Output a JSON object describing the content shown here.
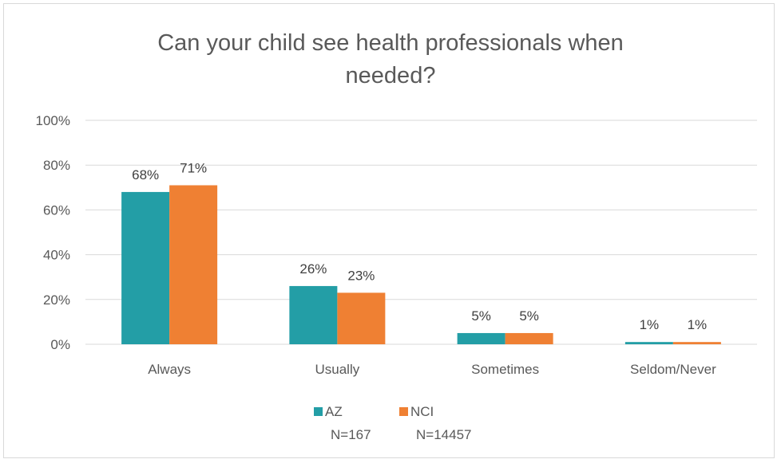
{
  "chart_data": {
    "type": "bar",
    "title": "Can your child see health professionals when needed?",
    "title_lines": [
      "Can your child see health professionals when",
      "needed?"
    ],
    "categories": [
      "Always",
      "Usually",
      "Sometimes",
      "Seldom/Never"
    ],
    "series": [
      {
        "name": "AZ",
        "sample_size": "N=167",
        "color": "#239ea6",
        "values": [
          68,
          26,
          5,
          1
        ],
        "labels": [
          "68%",
          "26%",
          "5%",
          "1%"
        ]
      },
      {
        "name": "NCI",
        "sample_size": "N=14457",
        "color": "#ef8033",
        "values": [
          71,
          23,
          5,
          1
        ],
        "labels": [
          "71%",
          "23%",
          "5%",
          "1%"
        ]
      }
    ],
    "ylim": [
      0,
      100
    ],
    "yticks": [
      0,
      20,
      40,
      60,
      80,
      100
    ],
    "ytick_labels": [
      "0%",
      "20%",
      "40%",
      "60%",
      "80%",
      "100%"
    ],
    "xlabel": "",
    "ylabel": "",
    "grid": true,
    "legend_position": "bottom"
  }
}
